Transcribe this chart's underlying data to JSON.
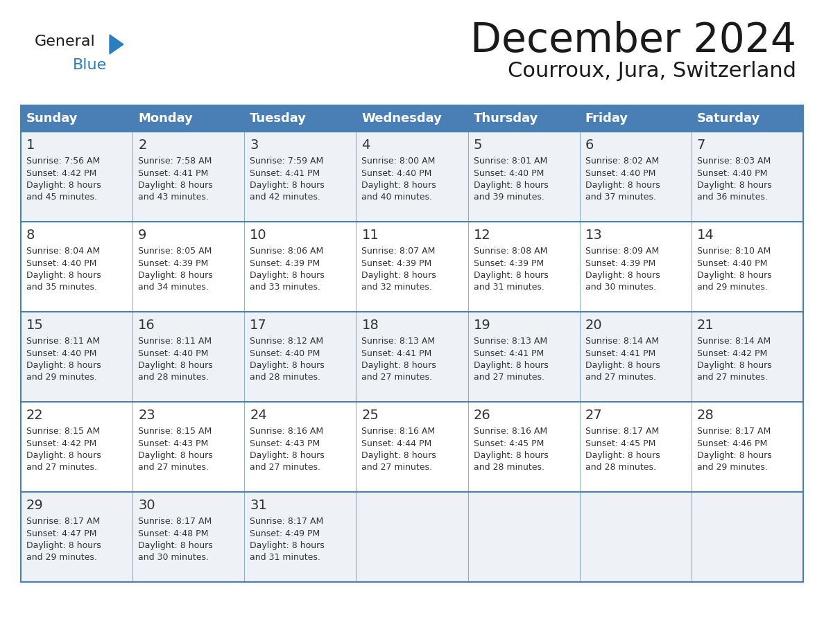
{
  "title": "December 2024",
  "subtitle": "Courroux, Jura, Switzerland",
  "days_of_week": [
    "Sunday",
    "Monday",
    "Tuesday",
    "Wednesday",
    "Thursday",
    "Friday",
    "Saturday"
  ],
  "header_bg": "#4a7fb5",
  "header_text_color": "#ffffff",
  "cell_bg_light": "#eef2f7",
  "cell_bg_white": "#ffffff",
  "row_line_color": "#4a7fb5",
  "text_color": "#333333",
  "title_color": "#1a1a1a",
  "logo_general_color": "#1a1a1a",
  "logo_blue_color": "#2b7fc1",
  "logo_triangle_color": "#2b7fc1",
  "calendar_data": [
    [
      {
        "day": 1,
        "sunrise": "7:56 AM",
        "sunset": "4:42 PM",
        "daylight": "8 hours and 45 minutes."
      },
      {
        "day": 2,
        "sunrise": "7:58 AM",
        "sunset": "4:41 PM",
        "daylight": "8 hours and 43 minutes."
      },
      {
        "day": 3,
        "sunrise": "7:59 AM",
        "sunset": "4:41 PM",
        "daylight": "8 hours and 42 minutes."
      },
      {
        "day": 4,
        "sunrise": "8:00 AM",
        "sunset": "4:40 PM",
        "daylight": "8 hours and 40 minutes."
      },
      {
        "day": 5,
        "sunrise": "8:01 AM",
        "sunset": "4:40 PM",
        "daylight": "8 hours and 39 minutes."
      },
      {
        "day": 6,
        "sunrise": "8:02 AM",
        "sunset": "4:40 PM",
        "daylight": "8 hours and 37 minutes."
      },
      {
        "day": 7,
        "sunrise": "8:03 AM",
        "sunset": "4:40 PM",
        "daylight": "8 hours and 36 minutes."
      }
    ],
    [
      {
        "day": 8,
        "sunrise": "8:04 AM",
        "sunset": "4:40 PM",
        "daylight": "8 hours and 35 minutes."
      },
      {
        "day": 9,
        "sunrise": "8:05 AM",
        "sunset": "4:39 PM",
        "daylight": "8 hours and 34 minutes."
      },
      {
        "day": 10,
        "sunrise": "8:06 AM",
        "sunset": "4:39 PM",
        "daylight": "8 hours and 33 minutes."
      },
      {
        "day": 11,
        "sunrise": "8:07 AM",
        "sunset": "4:39 PM",
        "daylight": "8 hours and 32 minutes."
      },
      {
        "day": 12,
        "sunrise": "8:08 AM",
        "sunset": "4:39 PM",
        "daylight": "8 hours and 31 minutes."
      },
      {
        "day": 13,
        "sunrise": "8:09 AM",
        "sunset": "4:39 PM",
        "daylight": "8 hours and 30 minutes."
      },
      {
        "day": 14,
        "sunrise": "8:10 AM",
        "sunset": "4:40 PM",
        "daylight": "8 hours and 29 minutes."
      }
    ],
    [
      {
        "day": 15,
        "sunrise": "8:11 AM",
        "sunset": "4:40 PM",
        "daylight": "8 hours and 29 minutes."
      },
      {
        "day": 16,
        "sunrise": "8:11 AM",
        "sunset": "4:40 PM",
        "daylight": "8 hours and 28 minutes."
      },
      {
        "day": 17,
        "sunrise": "8:12 AM",
        "sunset": "4:40 PM",
        "daylight": "8 hours and 28 minutes."
      },
      {
        "day": 18,
        "sunrise": "8:13 AM",
        "sunset": "4:41 PM",
        "daylight": "8 hours and 27 minutes."
      },
      {
        "day": 19,
        "sunrise": "8:13 AM",
        "sunset": "4:41 PM",
        "daylight": "8 hours and 27 minutes."
      },
      {
        "day": 20,
        "sunrise": "8:14 AM",
        "sunset": "4:41 PM",
        "daylight": "8 hours and 27 minutes."
      },
      {
        "day": 21,
        "sunrise": "8:14 AM",
        "sunset": "4:42 PM",
        "daylight": "8 hours and 27 minutes."
      }
    ],
    [
      {
        "day": 22,
        "sunrise": "8:15 AM",
        "sunset": "4:42 PM",
        "daylight": "8 hours and 27 minutes."
      },
      {
        "day": 23,
        "sunrise": "8:15 AM",
        "sunset": "4:43 PM",
        "daylight": "8 hours and 27 minutes."
      },
      {
        "day": 24,
        "sunrise": "8:16 AM",
        "sunset": "4:43 PM",
        "daylight": "8 hours and 27 minutes."
      },
      {
        "day": 25,
        "sunrise": "8:16 AM",
        "sunset": "4:44 PM",
        "daylight": "8 hours and 27 minutes."
      },
      {
        "day": 26,
        "sunrise": "8:16 AM",
        "sunset": "4:45 PM",
        "daylight": "8 hours and 28 minutes."
      },
      {
        "day": 27,
        "sunrise": "8:17 AM",
        "sunset": "4:45 PM",
        "daylight": "8 hours and 28 minutes."
      },
      {
        "day": 28,
        "sunrise": "8:17 AM",
        "sunset": "4:46 PM",
        "daylight": "8 hours and 29 minutes."
      }
    ],
    [
      {
        "day": 29,
        "sunrise": "8:17 AM",
        "sunset": "4:47 PM",
        "daylight": "8 hours and 29 minutes."
      },
      {
        "day": 30,
        "sunrise": "8:17 AM",
        "sunset": "4:48 PM",
        "daylight": "8 hours and 30 minutes."
      },
      {
        "day": 31,
        "sunrise": "8:17 AM",
        "sunset": "4:49 PM",
        "daylight": "8 hours and 31 minutes."
      },
      null,
      null,
      null,
      null
    ]
  ]
}
